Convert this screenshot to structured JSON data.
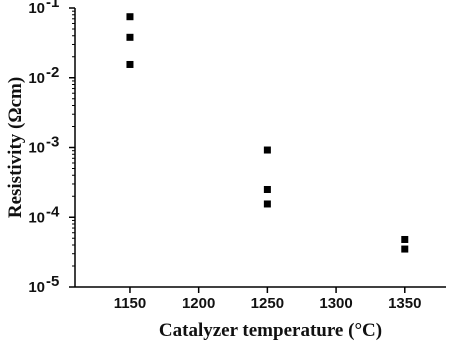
{
  "chart_data": {
    "type": "scatter",
    "title": "",
    "xlabel": "Catalyzer temperature (°C)",
    "ylabel": "Resistivity (Ωcm)",
    "x_ticks": [
      "1150",
      "1200",
      "1250",
      "1300",
      "1350"
    ],
    "x_tick_values": [
      1150,
      1200,
      1250,
      1300,
      1350
    ],
    "y_scale": "log",
    "y_ticks": [
      {
        "value": 0.1,
        "mantissa": "10",
        "exponent": "-1"
      },
      {
        "value": 0.01,
        "mantissa": "10",
        "exponent": "-2"
      },
      {
        "value": 0.001,
        "mantissa": "10",
        "exponent": "-3"
      },
      {
        "value": 0.0001,
        "mantissa": "10",
        "exponent": "-4"
      },
      {
        "value": 1e-05,
        "mantissa": "10",
        "exponent": "-5"
      }
    ],
    "xlim": [
      1110,
      1380
    ],
    "ylim": [
      1e-05,
      0.1
    ],
    "grid": false,
    "marker": "square",
    "marker_color": "#000000",
    "series": [
      {
        "points": [
          {
            "x": 1150,
            "y": 0.075
          },
          {
            "x": 1150,
            "y": 0.038
          },
          {
            "x": 1150,
            "y": 0.0155
          },
          {
            "x": 1250,
            "y": 0.00092
          },
          {
            "x": 1250,
            "y": 0.00025
          },
          {
            "x": 1250,
            "y": 0.000155
          },
          {
            "x": 1350,
            "y": 4.8e-05
          },
          {
            "x": 1350,
            "y": 3.5e-05
          }
        ]
      }
    ]
  }
}
